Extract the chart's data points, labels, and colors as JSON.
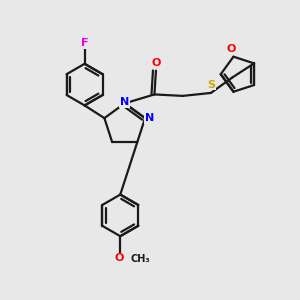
{
  "background_color": "#e8e8e8",
  "bond_color": "#1a1a1a",
  "atom_colors": {
    "F": "#ee00ee",
    "O": "#ff0000",
    "N": "#0000ff",
    "S": "#ccaa00",
    "C": "#1a1a1a"
  },
  "figsize": [
    3.0,
    3.0
  ],
  "dpi": 100,
  "lw": 1.6
}
